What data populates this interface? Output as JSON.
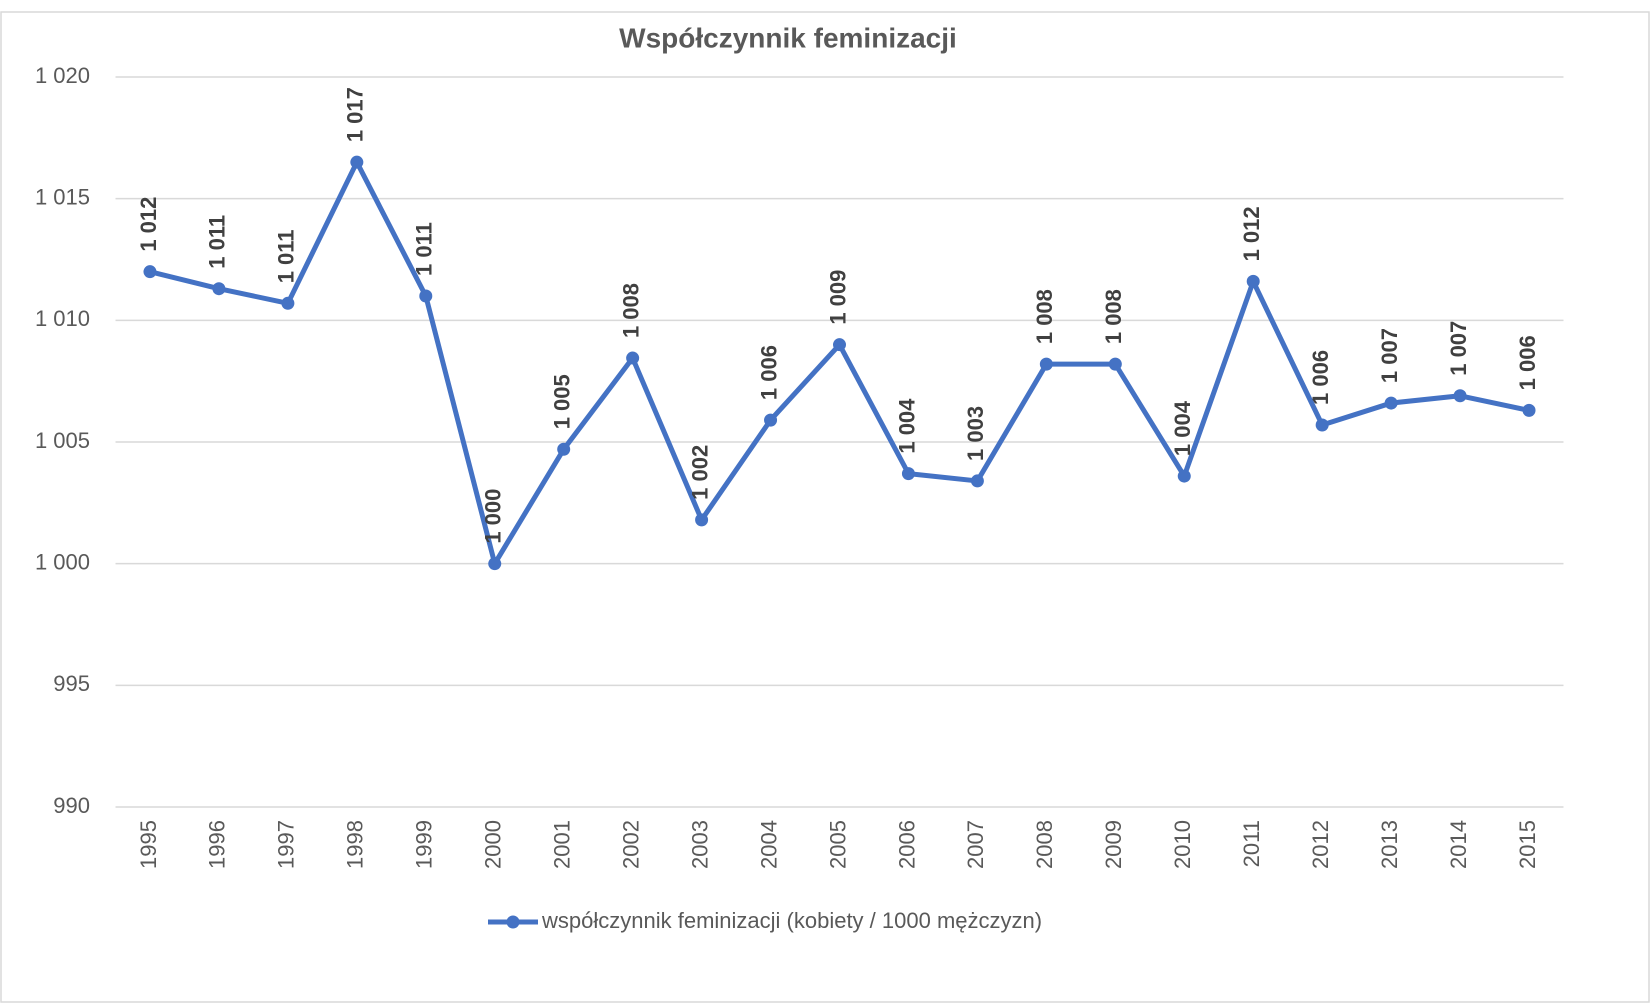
{
  "chart_data": {
    "type": "line",
    "title": "Współczynnik feminizacji",
    "categories": [
      "1995",
      "1996",
      "1997",
      "1998",
      "1999",
      "2000",
      "2001",
      "2002",
      "2003",
      "2004",
      "2005",
      "2006",
      "2007",
      "2008",
      "2009",
      "2010",
      "2011",
      "2012",
      "2013",
      "2014",
      "2015"
    ],
    "series": [
      {
        "name": "współczynnik feminizacji (kobiety / 1000 mężczyzn)",
        "color": "#4472c4",
        "values": [
          1012.0,
          1011.3,
          1010.7,
          1016.5,
          1011.0,
          1000.0,
          1004.7,
          1008.45,
          1001.8,
          1005.9,
          1009.0,
          1003.7,
          1003.4,
          1008.2,
          1008.2,
          1003.6,
          1011.6,
          1005.7,
          1006.6,
          1006.9,
          1006.3
        ],
        "value_labels": [
          "1 012",
          "1 011",
          "1 011",
          "1 017",
          "1 011",
          "1 000",
          "1 005",
          "1 008",
          "1 002",
          "1 006",
          "1 009",
          "1 004",
          "1 003",
          "1 008",
          "1 008",
          "1 004",
          "1 012",
          "1 006",
          "1 007",
          "1 007",
          "1 006"
        ]
      }
    ],
    "ylim": [
      990,
      1020
    ],
    "yticks": [
      990,
      995,
      {
        "value": 1000,
        "label": "1 000"
      },
      {
        "value": 1005,
        "label": "1 005"
      },
      {
        "value": 1010,
        "label": "1 010"
      },
      {
        "value": 1015,
        "label": "1 015"
      },
      {
        "value": 1020,
        "label": "1 020"
      }
    ],
    "grid": true,
    "legend": "bottom"
  }
}
